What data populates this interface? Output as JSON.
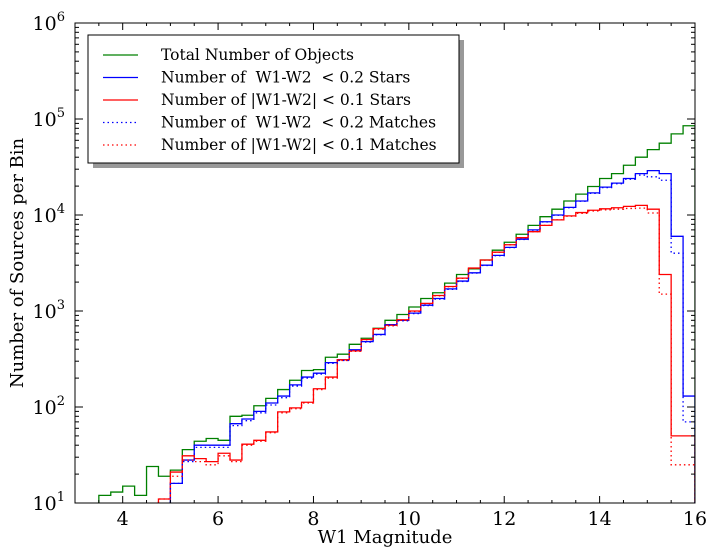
{
  "chart_data": {
    "type": "line",
    "step": true,
    "xlabel": "W1 Magnitude",
    "ylabel": "Number of Sources per Bin",
    "xlim": [
      3.0,
      16.0
    ],
    "ylim": [
      10,
      1000000
    ],
    "yscale": "log",
    "xticks": [
      "4",
      "6",
      "8",
      "10",
      "12",
      "14",
      "16"
    ],
    "xtick_values": [
      4,
      6,
      8,
      10,
      12,
      14,
      16
    ],
    "yticks": [
      {
        "value": 10,
        "base": "10",
        "exp": "1"
      },
      {
        "value": 100,
        "base": "10",
        "exp": "2"
      },
      {
        "value": 1000,
        "base": "10",
        "exp": "3"
      },
      {
        "value": 10000,
        "base": "10",
        "exp": "4"
      },
      {
        "value": 100000,
        "base": "10",
        "exp": "5"
      },
      {
        "value": 1000000,
        "base": "10",
        "exp": "6"
      }
    ],
    "grid": false,
    "legend_position": "top-left",
    "series": [
      {
        "name": "Total Number of Objects",
        "color": "#008000",
        "linestyle": "solid",
        "x": [
          3.75,
          4.0,
          4.25,
          4.5,
          4.75,
          5.0,
          5.25,
          5.5,
          5.75,
          6.0,
          6.25,
          6.5,
          6.75,
          7.0,
          7.25,
          7.5,
          7.75,
          8.0,
          8.25,
          8.5,
          8.75,
          9.0,
          9.25,
          9.5,
          9.75,
          10.0,
          10.25,
          10.5,
          10.75,
          11.0,
          11.25,
          11.5,
          11.75,
          12.0,
          12.25,
          12.5,
          12.75,
          13.0,
          13.25,
          13.5,
          13.75,
          14.0,
          14.25,
          14.5,
          14.75,
          15.0,
          15.25,
          15.5,
          15.75,
          16.0
        ],
        "y": [
          12,
          13,
          15,
          12,
          24,
          19,
          22,
          36,
          44,
          47,
          45,
          80,
          82,
          103,
          123,
          152,
          190,
          240,
          245,
          330,
          355,
          450,
          520,
          660,
          800,
          920,
          1100,
          1350,
          1550,
          1950,
          2400,
          2750,
          3400,
          4300,
          5200,
          6300,
          7800,
          9600,
          11500,
          14000,
          16500,
          19800,
          24000,
          27000,
          33000,
          40000,
          48000,
          56000,
          70000,
          85000
        ]
      },
      {
        "name": "Number of  W1-W2  < 0.2 Stars",
        "color": "#0000ff",
        "linestyle": "solid",
        "x": [
          5.25,
          5.5,
          5.75,
          6.0,
          6.25,
          6.5,
          6.75,
          7.0,
          7.25,
          7.5,
          7.75,
          8.0,
          8.25,
          8.5,
          8.75,
          9.0,
          9.25,
          9.5,
          9.75,
          10.0,
          10.25,
          10.5,
          10.75,
          11.0,
          11.25,
          11.5,
          11.75,
          12.0,
          12.25,
          12.5,
          12.75,
          13.0,
          13.25,
          13.5,
          13.75,
          14.0,
          14.25,
          14.5,
          14.75,
          15.0,
          15.25,
          15.5,
          15.75,
          16.0
        ],
        "y": [
          16,
          28,
          40,
          40,
          40,
          67,
          75,
          90,
          110,
          130,
          170,
          205,
          225,
          290,
          310,
          395,
          480,
          570,
          720,
          800,
          950,
          1150,
          1350,
          1700,
          2050,
          2500,
          3000,
          3800,
          4600,
          5600,
          7000,
          8500,
          10000,
          12000,
          14000,
          17000,
          19500,
          21500,
          24000,
          27000,
          29000,
          27000,
          6000,
          130
        ]
      },
      {
        "name": "Number of |W1-W2| < 0.1 Stars",
        "color": "#ff0000",
        "linestyle": "solid",
        "x": [
          5.0,
          5.25,
          5.5,
          5.75,
          6.0,
          6.25,
          6.5,
          6.75,
          7.0,
          7.25,
          7.5,
          7.75,
          8.0,
          8.25,
          8.5,
          8.75,
          9.0,
          9.25,
          9.5,
          9.75,
          10.0,
          10.25,
          10.5,
          10.75,
          11.0,
          11.25,
          11.5,
          11.75,
          12.0,
          12.25,
          12.5,
          12.75,
          13.0,
          13.25,
          13.5,
          13.75,
          14.0,
          14.25,
          14.5,
          14.75,
          15.0,
          15.25,
          15.5,
          15.75,
          16.0
        ],
        "y": [
          11,
          21,
          31,
          29,
          27,
          33,
          28,
          41,
          45,
          55,
          89,
          98,
          112,
          155,
          205,
          310,
          385,
          505,
          655,
          710,
          810,
          1000,
          1200,
          1450,
          1800,
          2200,
          2800,
          3400,
          4100,
          4900,
          5800,
          6700,
          7800,
          8900,
          9800,
          10600,
          11200,
          11600,
          11900,
          12300,
          12600,
          11500,
          2400,
          50,
          50
        ]
      },
      {
        "name": "Number of  W1-W2  < 0.2 Matches",
        "color": "#0000ff",
        "linestyle": "dotted",
        "x": [
          5.25,
          5.5,
          5.75,
          6.0,
          6.25,
          6.5,
          6.75,
          7.0,
          7.25,
          7.5,
          7.75,
          8.0,
          8.25,
          8.5,
          8.75,
          9.0,
          9.25,
          9.5,
          9.75,
          10.0,
          10.25,
          10.5,
          10.75,
          11.0,
          11.25,
          11.5,
          11.75,
          12.0,
          12.25,
          12.5,
          12.75,
          13.0,
          13.25,
          13.5,
          13.75,
          14.0,
          14.25,
          14.5,
          14.75,
          15.0,
          15.25,
          15.5,
          15.75,
          16.0
        ],
        "y": [
          16,
          27,
          38,
          38,
          38,
          64,
          72,
          87,
          105,
          125,
          165,
          200,
          220,
          285,
          305,
          390,
          475,
          565,
          710,
          790,
          940,
          1140,
          1330,
          1680,
          2030,
          2480,
          2980,
          3770,
          4570,
          5560,
          6950,
          8450,
          9950,
          11900,
          13900,
          16800,
          19300,
          21200,
          23600,
          26000,
          25000,
          23000,
          4000,
          70
        ]
      },
      {
        "name": "Number of |W1-W2| < 0.1 Matches",
        "color": "#ff0000",
        "linestyle": "dotted",
        "x": [
          5.0,
          5.25,
          5.5,
          5.75,
          6.0,
          6.25,
          6.5,
          6.75,
          7.0,
          7.25,
          7.5,
          7.75,
          8.0,
          8.25,
          8.5,
          8.75,
          9.0,
          9.25,
          9.5,
          9.75,
          10.0,
          10.25,
          10.5,
          10.75,
          11.0,
          11.25,
          11.5,
          11.75,
          12.0,
          12.25,
          12.5,
          12.75,
          13.0,
          13.25,
          13.5,
          13.75,
          14.0,
          14.25,
          14.5,
          14.75,
          15.0,
          15.25,
          15.5,
          15.75,
          16.0
        ],
        "y": [
          11,
          19,
          28,
          27,
          25,
          31,
          27,
          40,
          44,
          54,
          87,
          96,
          110,
          152,
          200,
          305,
          380,
          500,
          645,
          700,
          800,
          990,
          1190,
          1440,
          1790,
          2190,
          2790,
          3390,
          4090,
          4890,
          5790,
          6690,
          7790,
          8890,
          9700,
          10400,
          11000,
          11300,
          11500,
          11700,
          11800,
          10500,
          1500,
          25,
          25
        ]
      }
    ]
  }
}
